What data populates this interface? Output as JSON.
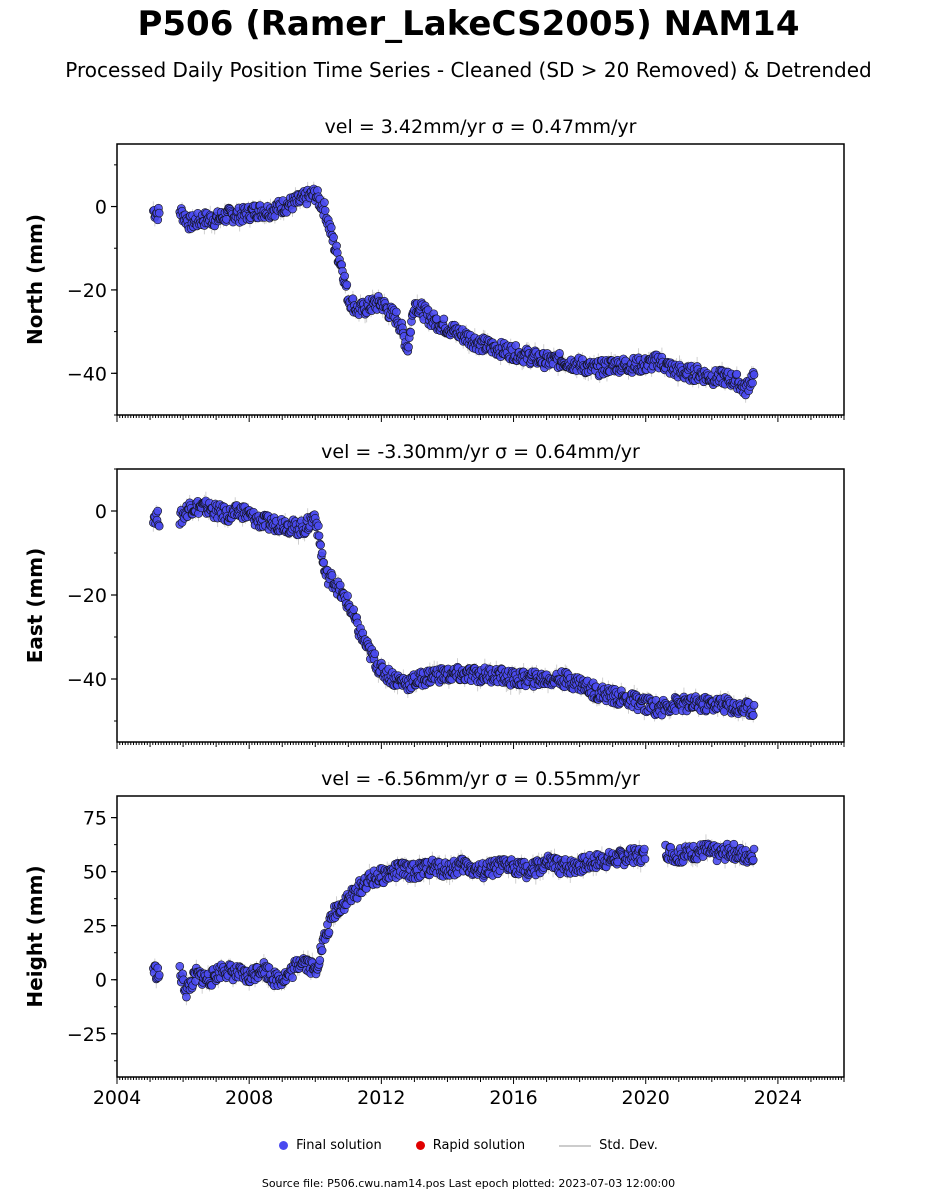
{
  "title": "P506 (Ramer_LakeCS2005) NAM14",
  "subtitle": "Processed Daily Position Time Series - Cleaned (SD > 20 Removed) & Detrended",
  "legend": {
    "final": "Final solution",
    "rapid": "Rapid solution",
    "std": "Std. Dev."
  },
  "source": "Source file: P506.cwu.nam14.pos  Last epoch plotted: 2023-07-03 12:00:00",
  "colors": {
    "final": "#4a4af0",
    "rapid": "#e00000",
    "std": "#bbbbbb"
  },
  "chart_data": [
    {
      "type": "scatter",
      "title": "vel = 3.42mm/yr   σ = 0.47mm/yr",
      "ylabel": "North (mm)",
      "xlim": [
        2004.0,
        2026.0
      ],
      "ylim": [
        -50,
        15
      ],
      "yticks": [
        0,
        -20,
        -40
      ],
      "xticks": [
        2004,
        2008,
        2012,
        2016,
        2020,
        2024
      ],
      "show_xticklabels": false,
      "grid": false,
      "series": [
        {
          "name": "Final solution",
          "x": [
            2005.1,
            2005.3,
            2005.9,
            2006.2,
            2006.6,
            2007.0,
            2007.4,
            2007.8,
            2008.2,
            2008.6,
            2009.0,
            2009.4,
            2009.7,
            2010.0,
            2010.3,
            2010.6,
            2010.8,
            2011.0,
            2011.3,
            2011.6,
            2012.0,
            2012.2,
            2012.5,
            2012.8,
            2013.0,
            2013.5,
            2014.0,
            2014.5,
            2015.0,
            2015.5,
            2016.0,
            2016.5,
            2017.0,
            2017.5,
            2018.0,
            2018.5,
            2019.0,
            2019.5,
            2020.0,
            2020.4,
            2020.8,
            2021.2,
            2021.6,
            2022.0,
            2022.4,
            2022.8,
            2023.0,
            2023.3
          ],
          "y": [
            -1,
            -2,
            -1,
            -4,
            -3,
            -3,
            -2,
            -2,
            -1,
            -1,
            0,
            1,
            2,
            3,
            -1,
            -10,
            -14,
            -22,
            -25,
            -24,
            -23,
            -25,
            -27,
            -34,
            -23,
            -27,
            -29,
            -31,
            -33,
            -34,
            -35,
            -36,
            -37,
            -37,
            -38,
            -39,
            -38,
            -38,
            -38,
            -37,
            -39,
            -40,
            -40,
            -41,
            -41,
            -42,
            -44,
            -40
          ]
        },
        {
          "name": "Rapid solution",
          "x": [],
          "y": []
        }
      ]
    },
    {
      "type": "scatter",
      "title": "vel = -3.30mm/yr   σ = 0.64mm/yr",
      "ylabel": "East (mm)",
      "xlim": [
        2004.0,
        2026.0
      ],
      "ylim": [
        -55,
        10
      ],
      "yticks": [
        0,
        -20,
        -40
      ],
      "xticks": [
        2004,
        2008,
        2012,
        2016,
        2020,
        2024
      ],
      "show_xticklabels": false,
      "grid": false,
      "series": [
        {
          "name": "Final solution",
          "x": [
            2005.1,
            2005.3,
            2005.9,
            2006.2,
            2006.6,
            2007.0,
            2007.4,
            2007.8,
            2008.2,
            2008.6,
            2009.0,
            2009.4,
            2009.7,
            2010.0,
            2010.3,
            2010.6,
            2010.8,
            2011.0,
            2011.3,
            2011.6,
            2012.0,
            2012.4,
            2012.8,
            2013.2,
            2013.6,
            2014.0,
            2014.5,
            2015.0,
            2015.5,
            2016.0,
            2016.5,
            2017.0,
            2017.5,
            2018.0,
            2018.5,
            2019.0,
            2019.5,
            2020.0,
            2020.4,
            2020.8,
            2021.2,
            2021.6,
            2022.0,
            2022.4,
            2022.8,
            2023.0,
            2023.3
          ],
          "y": [
            -1,
            -2,
            -2,
            1,
            1,
            0,
            -1,
            0,
            -2,
            -3,
            -3,
            -4,
            -4,
            -1,
            -15,
            -17,
            -20,
            -22,
            -28,
            -33,
            -38,
            -40,
            -41,
            -40,
            -39,
            -39,
            -39,
            -39,
            -39,
            -40,
            -40,
            -40,
            -40,
            -41,
            -43,
            -44,
            -45,
            -46,
            -47,
            -46,
            -46,
            -46,
            -46,
            -46,
            -47,
            -47,
            -47
          ]
        },
        {
          "name": "Rapid solution",
          "x": [],
          "y": []
        }
      ]
    },
    {
      "type": "scatter",
      "title": "vel = -6.56mm/yr   σ = 0.55mm/yr",
      "ylabel": "Height (mm)",
      "xlim": [
        2004.0,
        2026.0
      ],
      "ylim": [
        -45,
        85
      ],
      "yticks": [
        75,
        50,
        25,
        0,
        -25
      ],
      "xticks": [
        2004,
        2008,
        2012,
        2016,
        2020,
        2024
      ],
      "show_xticklabels": true,
      "grid": false,
      "series": [
        {
          "name": "Final solution",
          "x": [
            2005.1,
            2005.3,
            2005.9,
            2006.1,
            2006.4,
            2006.8,
            2007.2,
            2007.6,
            2008.0,
            2008.4,
            2008.8,
            2009.2,
            2009.6,
            2010.0,
            2010.3,
            2010.6,
            2010.9,
            2011.2,
            2011.5,
            2011.8,
            2012.2,
            2012.6,
            2013.0,
            2013.5,
            2014.0,
            2014.5,
            2015.0,
            2015.5,
            2016.0,
            2016.5,
            2017.0,
            2017.5,
            2018.0,
            2018.5,
            2019.0,
            2019.5,
            2020.0,
            2020.6,
            2021.0,
            2021.4,
            2021.8,
            2022.2,
            2022.6,
            2023.0,
            2023.3
          ],
          "y": [
            5,
            2,
            3,
            -5,
            2,
            0,
            5,
            3,
            1,
            6,
            0,
            2,
            10,
            4,
            20,
            32,
            36,
            40,
            45,
            47,
            49,
            51,
            50,
            52,
            51,
            53,
            50,
            52,
            53,
            50,
            54,
            52,
            53,
            55,
            56,
            57,
            58,
            60,
            57,
            59,
            60,
            58,
            60,
            57,
            59
          ]
        },
        {
          "name": "Rapid solution",
          "x": [],
          "y": []
        }
      ]
    }
  ]
}
